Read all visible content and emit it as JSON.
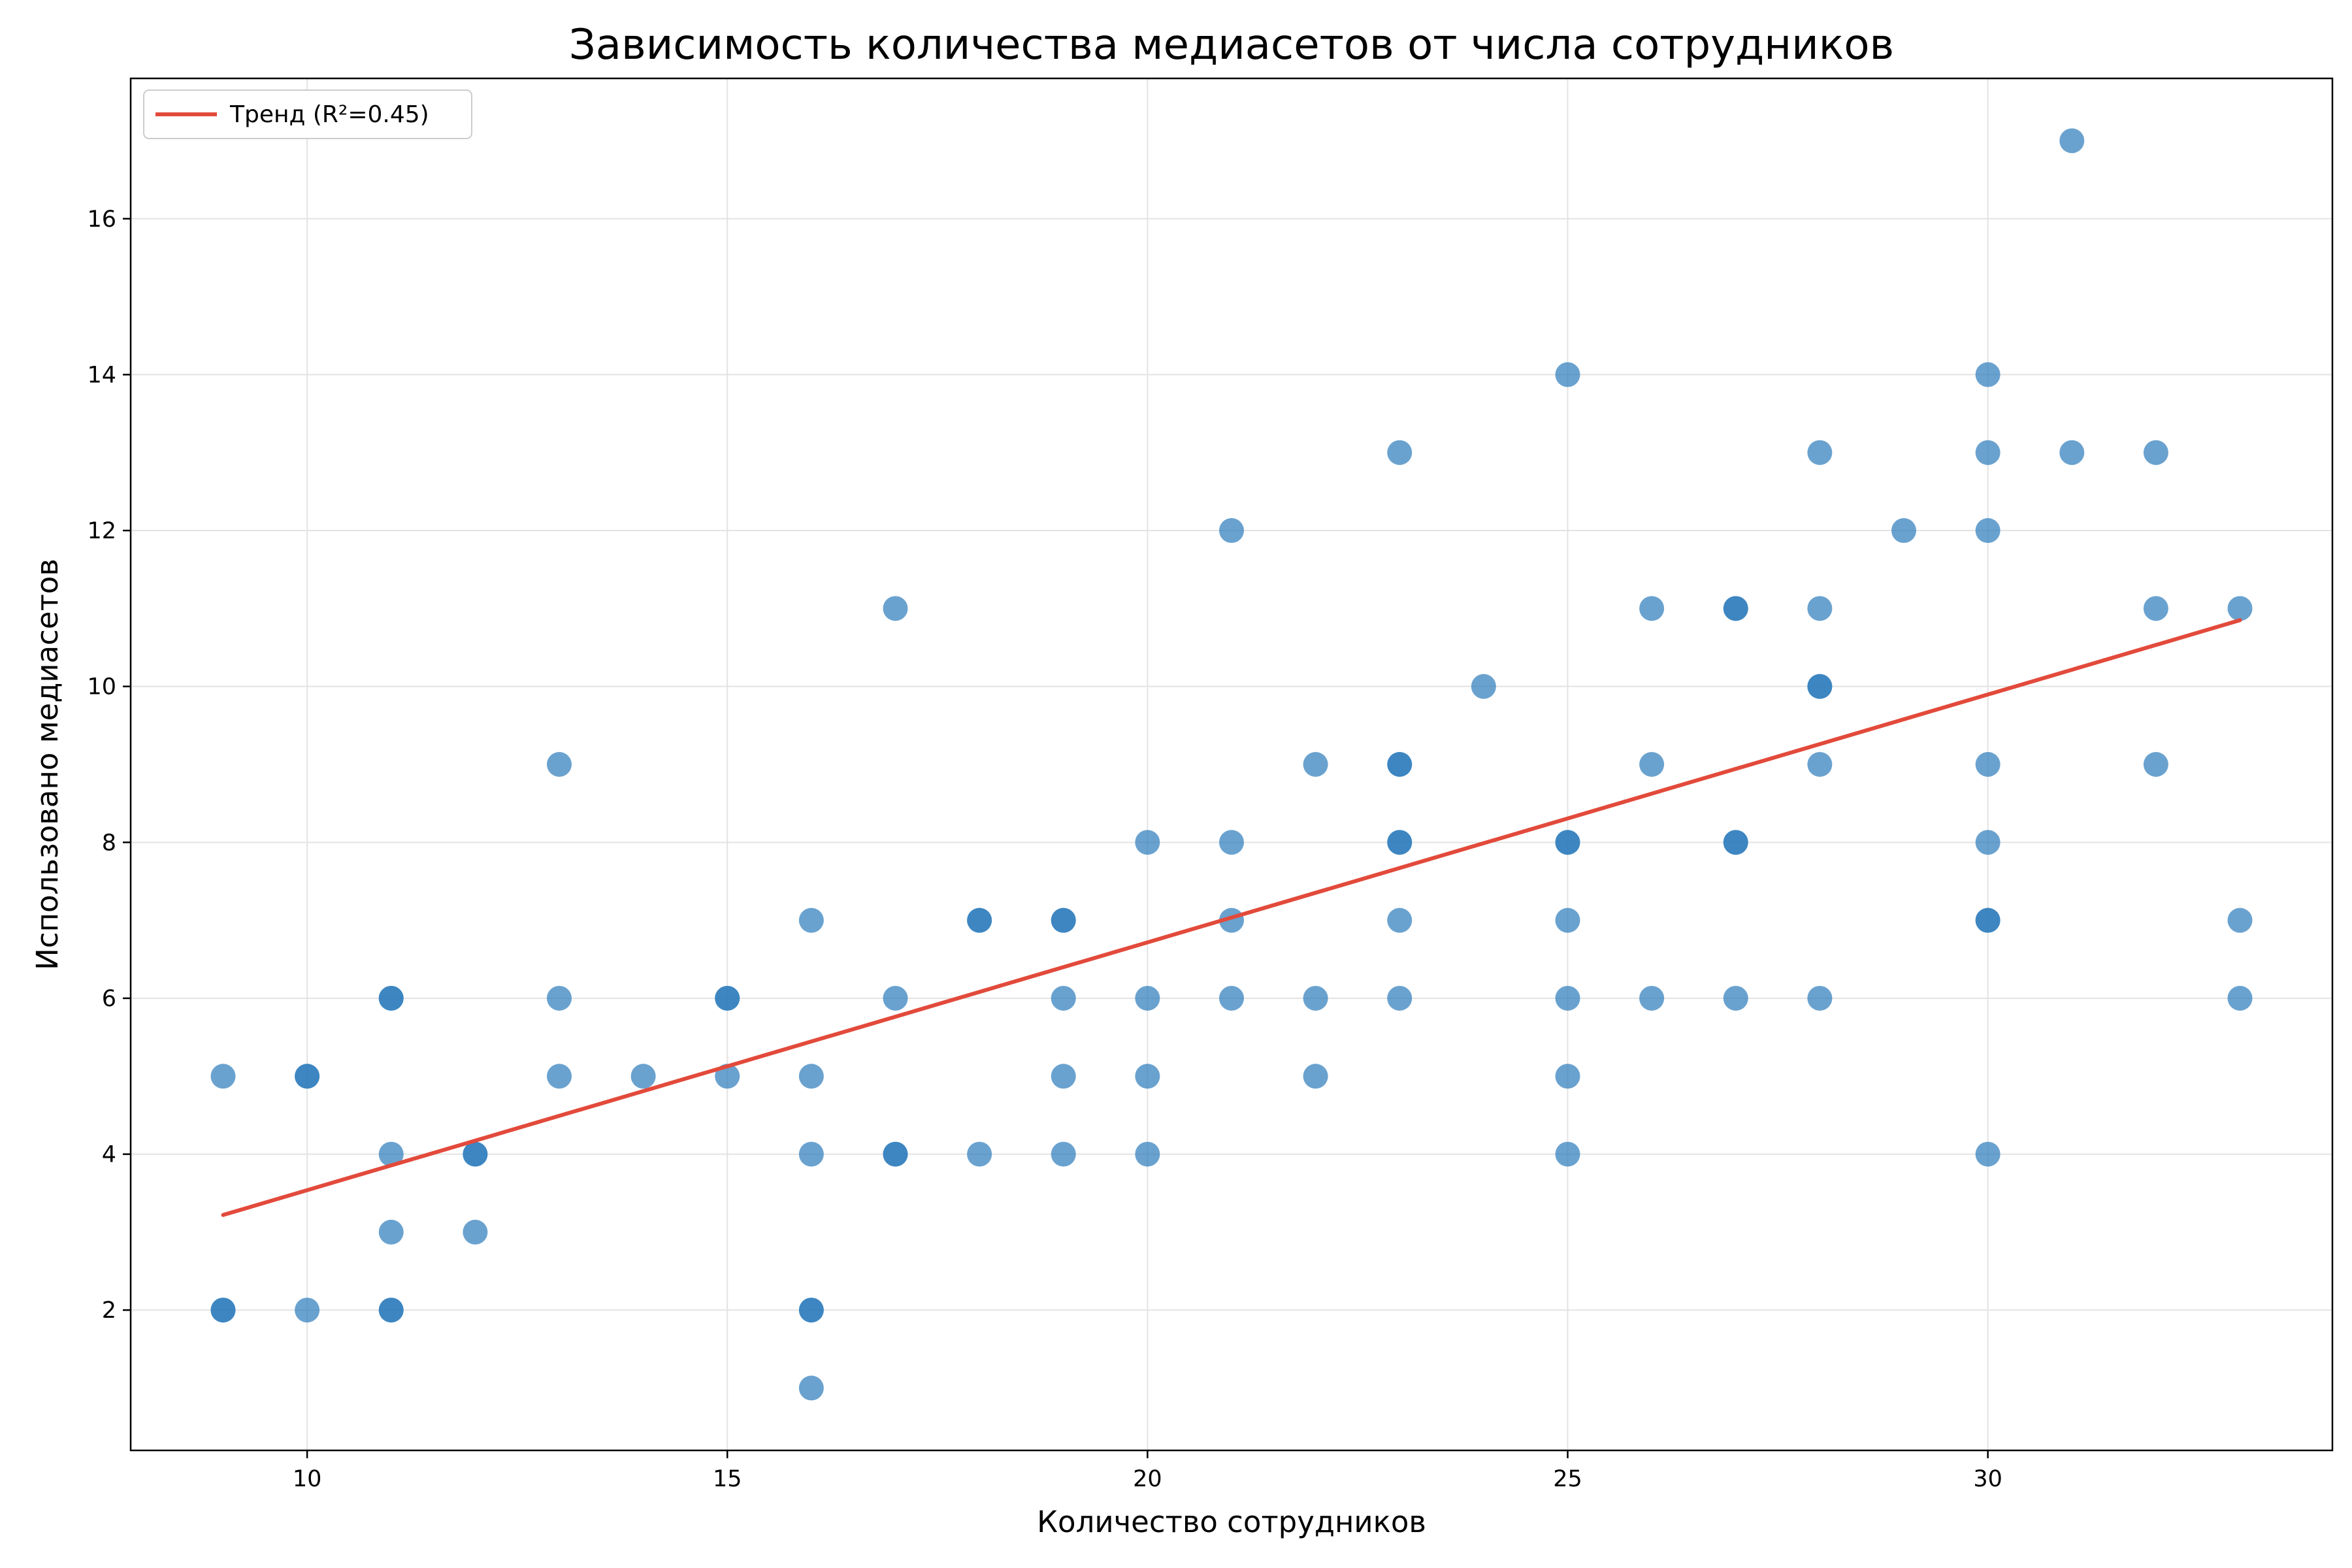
{
  "chart_data": {
    "type": "scatter",
    "title": "Зависимость количества медиасетов от числа сотрудников",
    "xlabel": "Количество сотрудников",
    "ylabel": "Использовано медиасетов",
    "xlim": [
      7.9,
      34.1
    ],
    "ylim": [
      0.2,
      17.8
    ],
    "xticks": [
      10,
      15,
      20,
      25,
      30
    ],
    "yticks": [
      2,
      4,
      6,
      8,
      10,
      12,
      14,
      16
    ],
    "grid": true,
    "legend_position": "top-left",
    "colors": {
      "points": "#2b7bba",
      "trend": "#e24a3b"
    },
    "series": [
      {
        "kind": "points",
        "points": [
          [
            9,
            5
          ],
          [
            9,
            2
          ],
          [
            9,
            2
          ],
          [
            10,
            5
          ],
          [
            10,
            5
          ],
          [
            10,
            2
          ],
          [
            11,
            6
          ],
          [
            11,
            6
          ],
          [
            11,
            4
          ],
          [
            11,
            3
          ],
          [
            11,
            2
          ],
          [
            11,
            2
          ],
          [
            12,
            4
          ],
          [
            12,
            4
          ],
          [
            12,
            3
          ],
          [
            13,
            9
          ],
          [
            13,
            6
          ],
          [
            13,
            5
          ],
          [
            14,
            5
          ],
          [
            15,
            6
          ],
          [
            15,
            6
          ],
          [
            15,
            5
          ],
          [
            16,
            7
          ],
          [
            16,
            5
          ],
          [
            16,
            4
          ],
          [
            16,
            2
          ],
          [
            16,
            2
          ],
          [
            16,
            1
          ],
          [
            17,
            11
          ],
          [
            17,
            6
          ],
          [
            17,
            4
          ],
          [
            17,
            4
          ],
          [
            18,
            7
          ],
          [
            18,
            7
          ],
          [
            18,
            4
          ],
          [
            19,
            7
          ],
          [
            19,
            7
          ],
          [
            19,
            6
          ],
          [
            19,
            5
          ],
          [
            19,
            4
          ],
          [
            20,
            8
          ],
          [
            20,
            6
          ],
          [
            20,
            5
          ],
          [
            20,
            4
          ],
          [
            21,
            12
          ],
          [
            21,
            8
          ],
          [
            21,
            7
          ],
          [
            21,
            6
          ],
          [
            22,
            9
          ],
          [
            22,
            6
          ],
          [
            22,
            5
          ],
          [
            23,
            13
          ],
          [
            23,
            9
          ],
          [
            23,
            9
          ],
          [
            23,
            8
          ],
          [
            23,
            8
          ],
          [
            23,
            7
          ],
          [
            23,
            6
          ],
          [
            24,
            10
          ],
          [
            25,
            14
          ],
          [
            25,
            8
          ],
          [
            25,
            8
          ],
          [
            25,
            7
          ],
          [
            25,
            6
          ],
          [
            25,
            5
          ],
          [
            25,
            4
          ],
          [
            26,
            11
          ],
          [
            26,
            9
          ],
          [
            26,
            6
          ],
          [
            27,
            11
          ],
          [
            27,
            11
          ],
          [
            27,
            8
          ],
          [
            27,
            8
          ],
          [
            27,
            6
          ],
          [
            28,
            13
          ],
          [
            28,
            11
          ],
          [
            28,
            10
          ],
          [
            28,
            10
          ],
          [
            28,
            9
          ],
          [
            28,
            6
          ],
          [
            29,
            12
          ],
          [
            30,
            14
          ],
          [
            30,
            13
          ],
          [
            30,
            12
          ],
          [
            30,
            9
          ],
          [
            30,
            8
          ],
          [
            30,
            7
          ],
          [
            30,
            7
          ],
          [
            30,
            4
          ],
          [
            31,
            17
          ],
          [
            31,
            13
          ],
          [
            32,
            13
          ],
          [
            32,
            11
          ],
          [
            32,
            9
          ],
          [
            33,
            11
          ],
          [
            33,
            7
          ],
          [
            33,
            6
          ]
        ]
      },
      {
        "kind": "trend",
        "name": "Тренд (R²=0.45)",
        "x": [
          9,
          33
        ],
        "y": [
          3.22,
          10.85
        ]
      }
    ]
  }
}
